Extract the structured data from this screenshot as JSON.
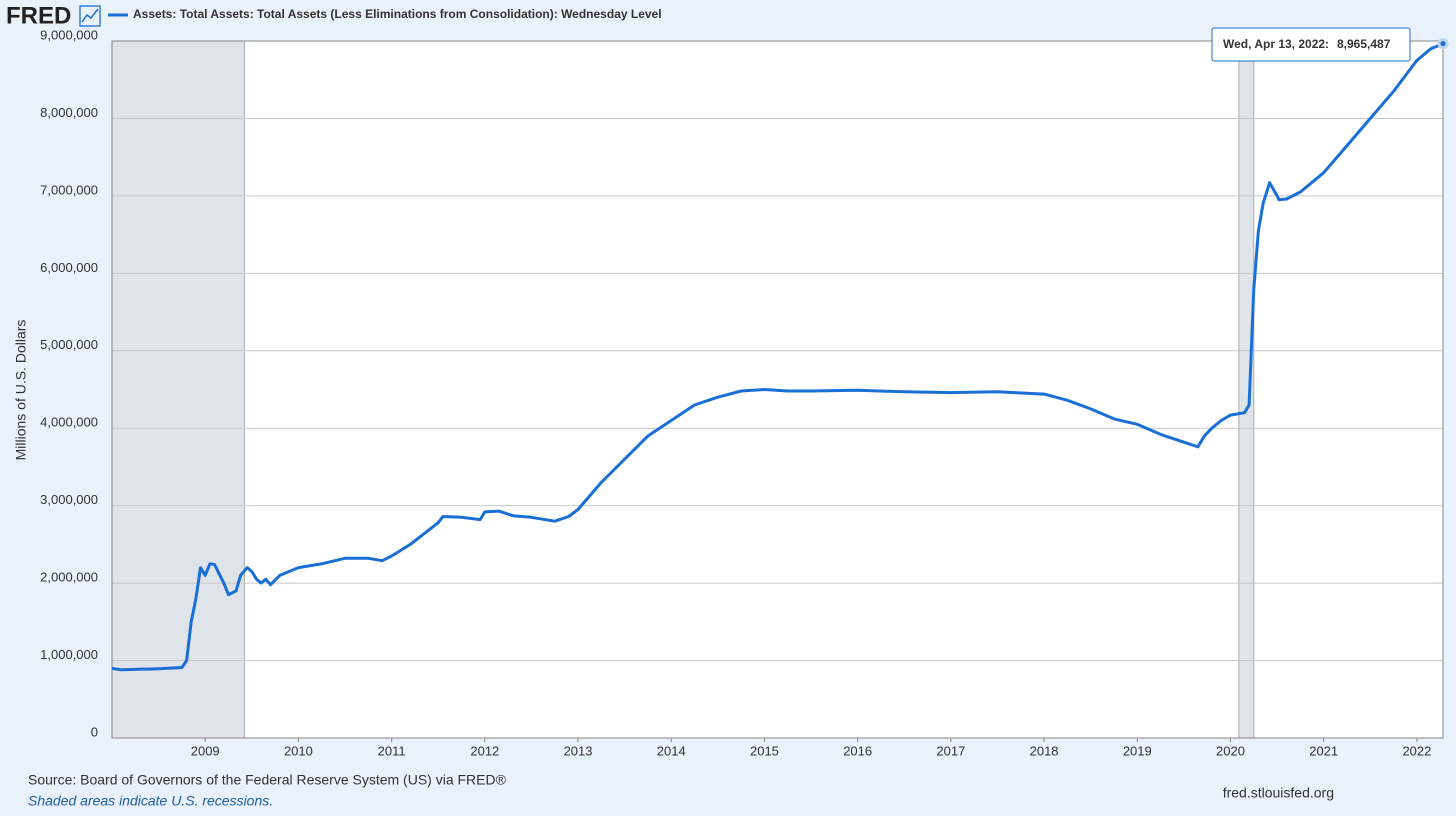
{
  "logo": "FRED",
  "chart_data": {
    "type": "line",
    "series": [
      {
        "name": "Assets: Total Assets: Total Assets (Less Eliminations from Consolidation): Wednesday Level",
        "color": "#1a6fd6",
        "x": [
          2008.0,
          2008.1,
          2008.2,
          2008.3,
          2008.4,
          2008.5,
          2008.6,
          2008.75,
          2008.8,
          2008.85,
          2008.9,
          2008.95,
          2009.0,
          2009.05,
          2009.1,
          2009.2,
          2009.25,
          2009.33,
          2009.38,
          2009.45,
          2009.5,
          2009.55,
          2009.6,
          2009.65,
          2009.7,
          2009.8,
          2010.0,
          2010.25,
          2010.5,
          2010.75,
          2010.9,
          2011.0,
          2011.2,
          2011.5,
          2011.55,
          2011.75,
          2011.95,
          2012.0,
          2012.15,
          2012.3,
          2012.5,
          2012.75,
          2012.9,
          2013.0,
          2013.25,
          2013.5,
          2013.75,
          2014.0,
          2014.25,
          2014.5,
          2014.75,
          2015.0,
          2015.25,
          2015.5,
          2016.0,
          2016.5,
          2017.0,
          2017.5,
          2018.0,
          2018.25,
          2018.5,
          2018.75,
          2019.0,
          2019.25,
          2019.5,
          2019.65,
          2019.72,
          2019.8,
          2019.9,
          2020.0,
          2020.15,
          2020.2,
          2020.25,
          2020.3,
          2020.35,
          2020.42,
          2020.5,
          2020.52,
          2020.6,
          2020.75,
          2021.0,
          2021.25,
          2021.5,
          2021.75,
          2022.0,
          2022.15,
          2022.28
        ],
        "values": [
          900000,
          880000,
          885000,
          890000,
          890000,
          895000,
          900000,
          910000,
          1000000,
          1500000,
          1800000,
          2200000,
          2100000,
          2250000,
          2240000,
          2000000,
          1850000,
          1900000,
          2100000,
          2200000,
          2150000,
          2050000,
          2000000,
          2050000,
          1980000,
          2100000,
          2200000,
          2250000,
          2320000,
          2320000,
          2290000,
          2350000,
          2500000,
          2780000,
          2860000,
          2850000,
          2820000,
          2920000,
          2930000,
          2870000,
          2850000,
          2800000,
          2860000,
          2950000,
          3300000,
          3600000,
          3900000,
          4100000,
          4300000,
          4400000,
          4480000,
          4500000,
          4480000,
          4480000,
          4490000,
          4470000,
          4460000,
          4470000,
          4440000,
          4360000,
          4250000,
          4120000,
          4050000,
          3920000,
          3820000,
          3760000,
          3900000,
          4000000,
          4100000,
          4170000,
          4200000,
          4300000,
          5800000,
          6550000,
          6900000,
          7170000,
          7000000,
          6950000,
          6960000,
          7050000,
          7300000,
          7650000,
          8000000,
          8350000,
          8750000,
          8900000,
          8965487
        ]
      }
    ],
    "xlim": [
      2008.0,
      2022.28
    ],
    "xticks": [
      2009,
      2010,
      2011,
      2012,
      2013,
      2014,
      2015,
      2016,
      2017,
      2018,
      2019,
      2020,
      2021,
      2022
    ],
    "ylim": [
      0,
      9000000
    ],
    "yticks": [
      0,
      {
        "value": 1000000,
        "label": "1,000,000"
      },
      {
        "value": 2000000,
        "label": "2,000,000"
      },
      {
        "value": 3000000,
        "label": "3,000,000"
      },
      {
        "value": 4000000,
        "label": "4,000,000"
      },
      {
        "value": 5000000,
        "label": "5,000,000"
      },
      {
        "value": 6000000,
        "label": "6,000,000"
      },
      {
        "value": 7000000,
        "label": "7,000,000"
      },
      {
        "value": 8000000,
        "label": "8,000,000"
      },
      {
        "value": 9000000,
        "label": "9,000,000"
      }
    ],
    "y_label": "Millions of U.S. Dollars",
    "grid": true,
    "recessions": [
      [
        2007.92,
        2009.42
      ],
      [
        2020.09,
        2020.25
      ]
    ],
    "tooltip": {
      "date_label": "Wed, Apr 13, 2022:",
      "x": 2022.28,
      "value": 8965487,
      "value_label": "8,965,487"
    },
    "source": "Source: Board of Governors of the Federal Reserve System (US) via FRED®",
    "note": "Shaded areas indicate U.S. recessions.",
    "site": "fred.stlouisfed.org"
  }
}
